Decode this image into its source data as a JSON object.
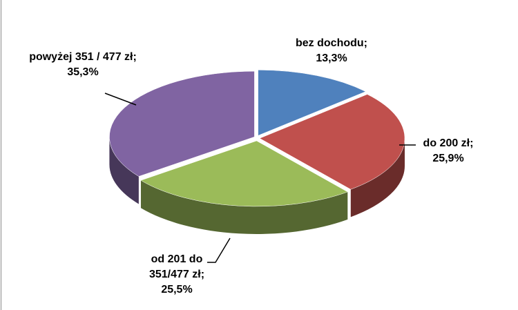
{
  "chart_data": {
    "type": "pie3d",
    "categories": [
      "bez dochodu;",
      "do 200 zł;",
      "od 201 do 351/477 zł;",
      "powyżej 351 / 477 zł;"
    ],
    "values": [
      13.3,
      25.9,
      25.5,
      35.3
    ],
    "value_labels": [
      "13,3%",
      "25,9%",
      "25,5%",
      "35,3%"
    ],
    "colors": [
      "#4f81bd",
      "#c0504d",
      "#9bbb59",
      "#8064a2"
    ]
  }
}
